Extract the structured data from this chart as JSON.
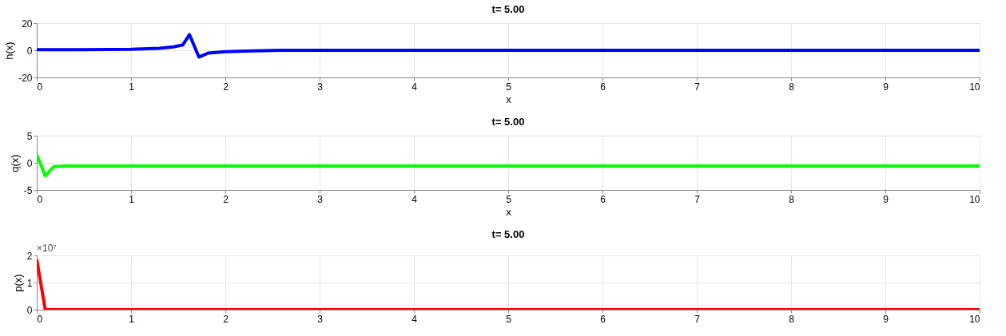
{
  "chart_data": [
    {
      "type": "line",
      "title": "t= 5.00",
      "xlabel": "x",
      "ylabel": "h(x)",
      "xlim": [
        0,
        10
      ],
      "xticks": [
        0,
        1,
        2,
        3,
        4,
        5,
        6,
        7,
        8,
        9,
        10
      ],
      "ylim": [
        -20,
        20
      ],
      "yticks": [
        -20,
        0,
        20
      ],
      "grid": true,
      "series": [
        {
          "color": "#0000ff",
          "x": [
            0,
            0.5,
            1,
            1.3,
            1.45,
            1.55,
            1.62,
            1.72,
            1.82,
            2,
            2.3,
            2.6,
            10
          ],
          "values": [
            0.5,
            0.5,
            0.8,
            1.5,
            2.5,
            4,
            11.5,
            -5,
            -2,
            -1,
            -0.5,
            0,
            0
          ]
        }
      ]
    },
    {
      "type": "line",
      "title": "t= 5.00",
      "xlabel": "x",
      "ylabel": "q(x)",
      "xlim": [
        0,
        10
      ],
      "xticks": [
        0,
        1,
        2,
        3,
        4,
        5,
        6,
        7,
        8,
        9,
        10
      ],
      "ylim": [
        -5,
        5
      ],
      "yticks": [
        -5,
        0,
        5
      ],
      "grid": true,
      "series": [
        {
          "color": "#00ff00",
          "x": [
            0,
            0.09,
            0.18,
            0.3,
            10
          ],
          "values": [
            1.5,
            -2.4,
            -0.7,
            -0.6,
            -0.6
          ]
        }
      ]
    },
    {
      "type": "line",
      "title": "t= 5.00",
      "ylabel": "p(x)",
      "xlim": [
        0,
        10
      ],
      "xticks": [
        0,
        1,
        2,
        3,
        4,
        5,
        6,
        7,
        8,
        9,
        10
      ],
      "ylim": [
        0,
        2
      ],
      "yticks": [
        0,
        1,
        2
      ],
      "grid": true,
      "annotations": [
        "×10⁷"
      ],
      "series": [
        {
          "color": "#ff0000",
          "x": [
            0,
            0.09,
            10
          ],
          "values": [
            1.85,
            0,
            0
          ]
        }
      ]
    }
  ]
}
